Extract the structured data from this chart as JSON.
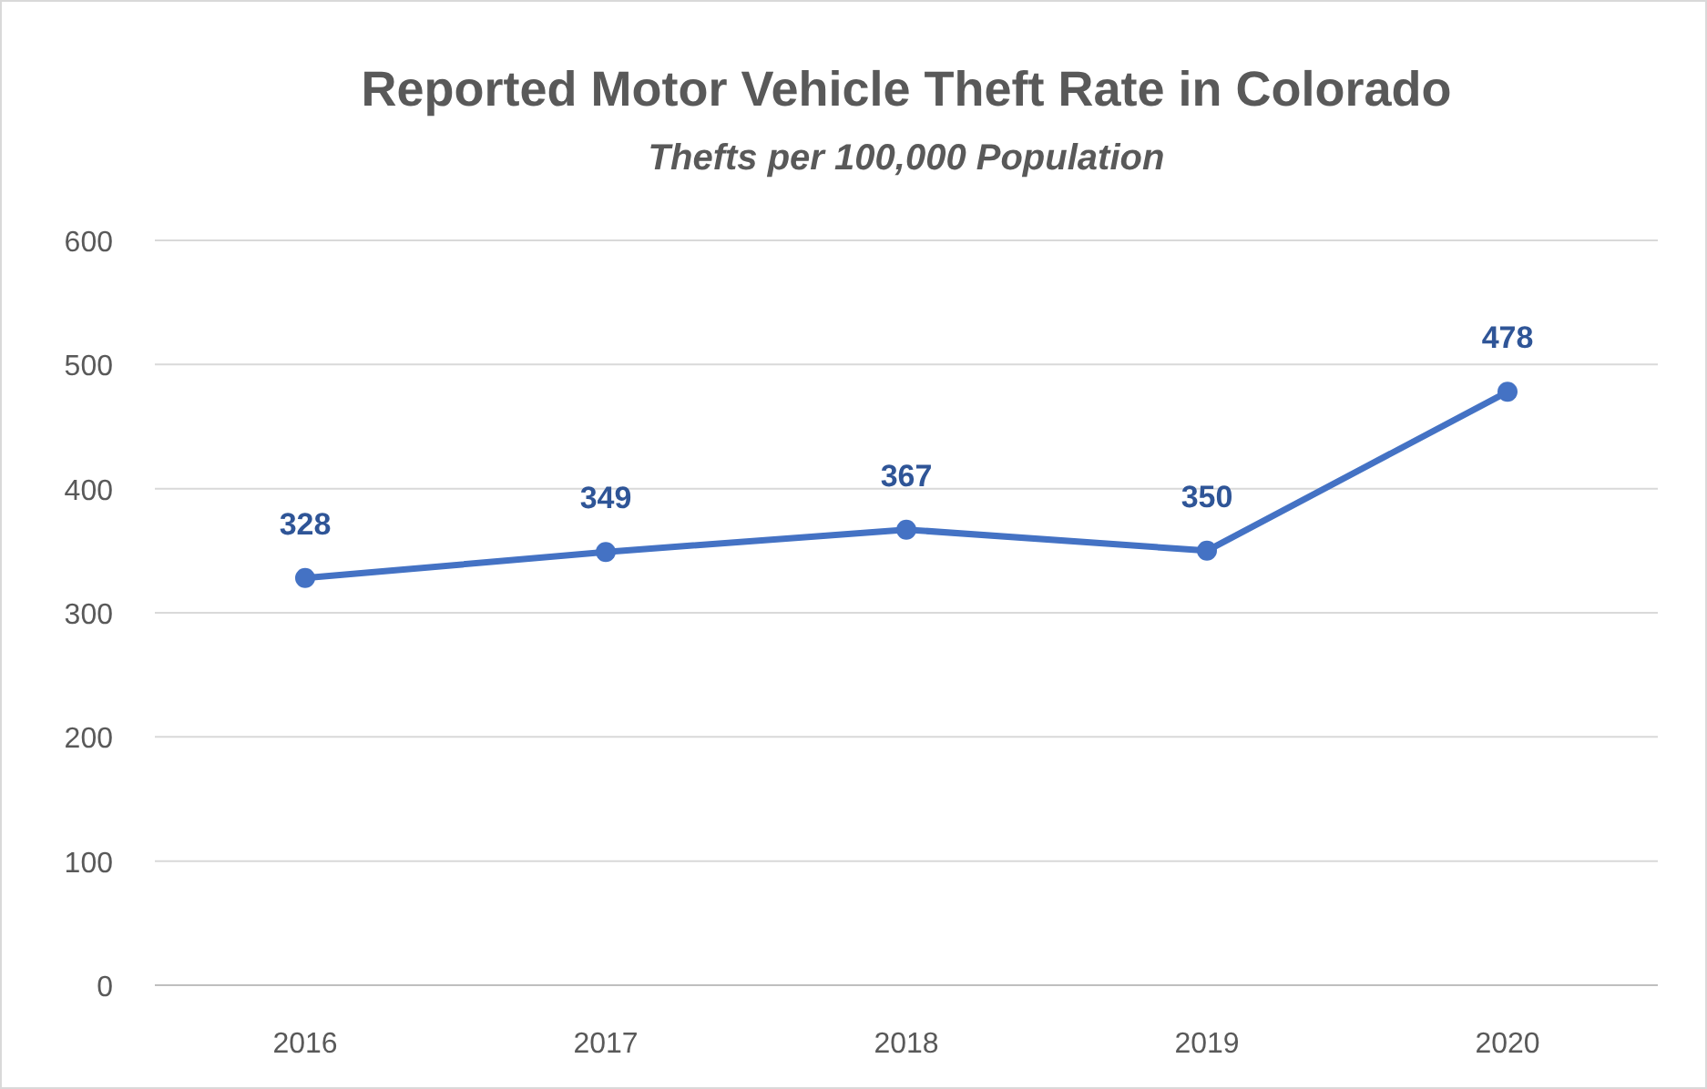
{
  "chart_data": {
    "type": "line",
    "title": "Reported Motor Vehicle Theft Rate in Colorado",
    "subtitle": "Thefts per 100,000 Population",
    "categories": [
      "2016",
      "2017",
      "2018",
      "2019",
      "2020"
    ],
    "series": [
      {
        "color": "#4472c4",
        "values": [
          328,
          349,
          367,
          350,
          478
        ]
      }
    ],
    "ylim": [
      0,
      600
    ],
    "yticks": [
      0,
      100,
      200,
      300,
      400,
      500,
      600
    ],
    "grid": "y",
    "marker": "circle",
    "line_style": "solid",
    "data_labels": true
  }
}
